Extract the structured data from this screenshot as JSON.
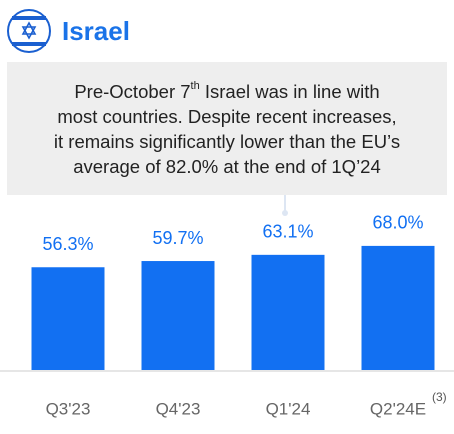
{
  "chart_data": {
    "type": "bar",
    "title": "Israel",
    "callout": [
      "Pre-October 7",
      "th",
      " Israel was in line with",
      "most countries. Despite recent increases,",
      "it remains significantly lower than the EU’s",
      "average of 82.0% at the end of 1Q’24"
    ],
    "categories": [
      "Q3'23",
      "Q4'23",
      "Q1'24",
      "Q2'24E"
    ],
    "values": [
      56.3,
      59.7,
      63.1,
      68.0
    ],
    "value_labels": [
      "56.3%",
      "59.7%",
      "63.1%",
      "68.0%"
    ],
    "footnote": "(3)",
    "color": "#1270f2",
    "ylim": [
      0,
      80
    ]
  }
}
